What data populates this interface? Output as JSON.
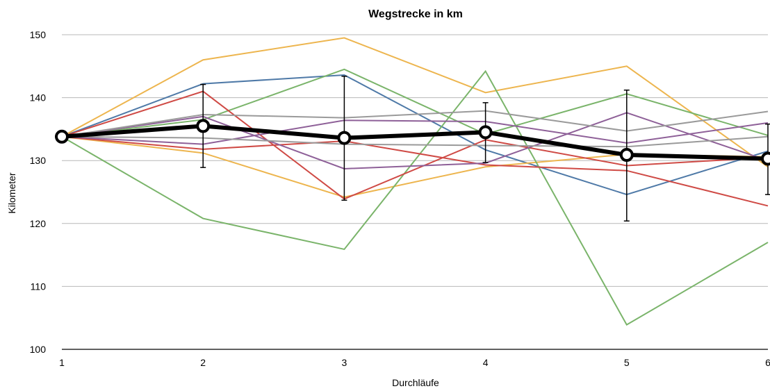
{
  "chart_data": {
    "type": "line",
    "title": "Wegstrecke in km",
    "xlabel": "Durchläufe",
    "ylabel": "Kilometer",
    "x": [
      1,
      2,
      3,
      4,
      5,
      6
    ],
    "xticks": [
      "1",
      "2",
      "3",
      "4",
      "5",
      "6"
    ],
    "ylim": [
      100,
      150
    ],
    "yticks": [
      "100",
      "110",
      "120",
      "130",
      "140",
      "150"
    ],
    "grid": true,
    "legend": "none",
    "series": [
      {
        "color": "#4e79a7",
        "values": [
          133.8,
          142.2,
          143.6,
          131.7,
          124.6,
          131.5
        ]
      },
      {
        "color": "#edb54e",
        "values": [
          133.8,
          146.0,
          149.5,
          140.8,
          145.0,
          129.0
        ]
      },
      {
        "color": "#edb54e",
        "values": [
          133.8,
          131.2,
          124.2,
          129.0,
          131.0,
          130.6
        ]
      },
      {
        "color": "#7ab46a",
        "values": [
          133.8,
          136.5,
          144.5,
          134.2,
          140.6,
          134.0
        ]
      },
      {
        "color": "#7ab46a",
        "values": [
          133.8,
          120.8,
          115.9,
          144.2,
          103.9,
          117.0
        ]
      },
      {
        "color": "#cf4a45",
        "values": [
          133.8,
          141.0,
          123.9,
          133.3,
          129.2,
          130.5
        ]
      },
      {
        "color": "#cf4a45",
        "values": [
          133.8,
          131.8,
          133.1,
          129.3,
          128.4,
          122.8
        ]
      },
      {
        "color": "#8e6098",
        "values": [
          133.8,
          137.0,
          128.7,
          129.6,
          137.6,
          130.0
        ]
      },
      {
        "color": "#8e6098",
        "values": [
          133.8,
          132.6,
          136.4,
          136.2,
          132.8,
          136.0
        ]
      },
      {
        "color": "#9a9a9a",
        "values": [
          133.8,
          137.3,
          136.8,
          137.9,
          134.7,
          137.8
        ]
      },
      {
        "color": "#9a9a9a",
        "values": [
          133.8,
          133.6,
          132.6,
          132.4,
          132.2,
          133.8
        ]
      }
    ],
    "mean": {
      "color": "#000000",
      "values": [
        133.8,
        135.5,
        133.6,
        134.5,
        130.9,
        130.3
      ],
      "error_low": [
        133.8,
        128.9,
        123.7,
        129.7,
        120.4,
        124.6
      ],
      "error_high": [
        133.8,
        142.1,
        143.4,
        139.2,
        141.2,
        135.8
      ]
    }
  }
}
